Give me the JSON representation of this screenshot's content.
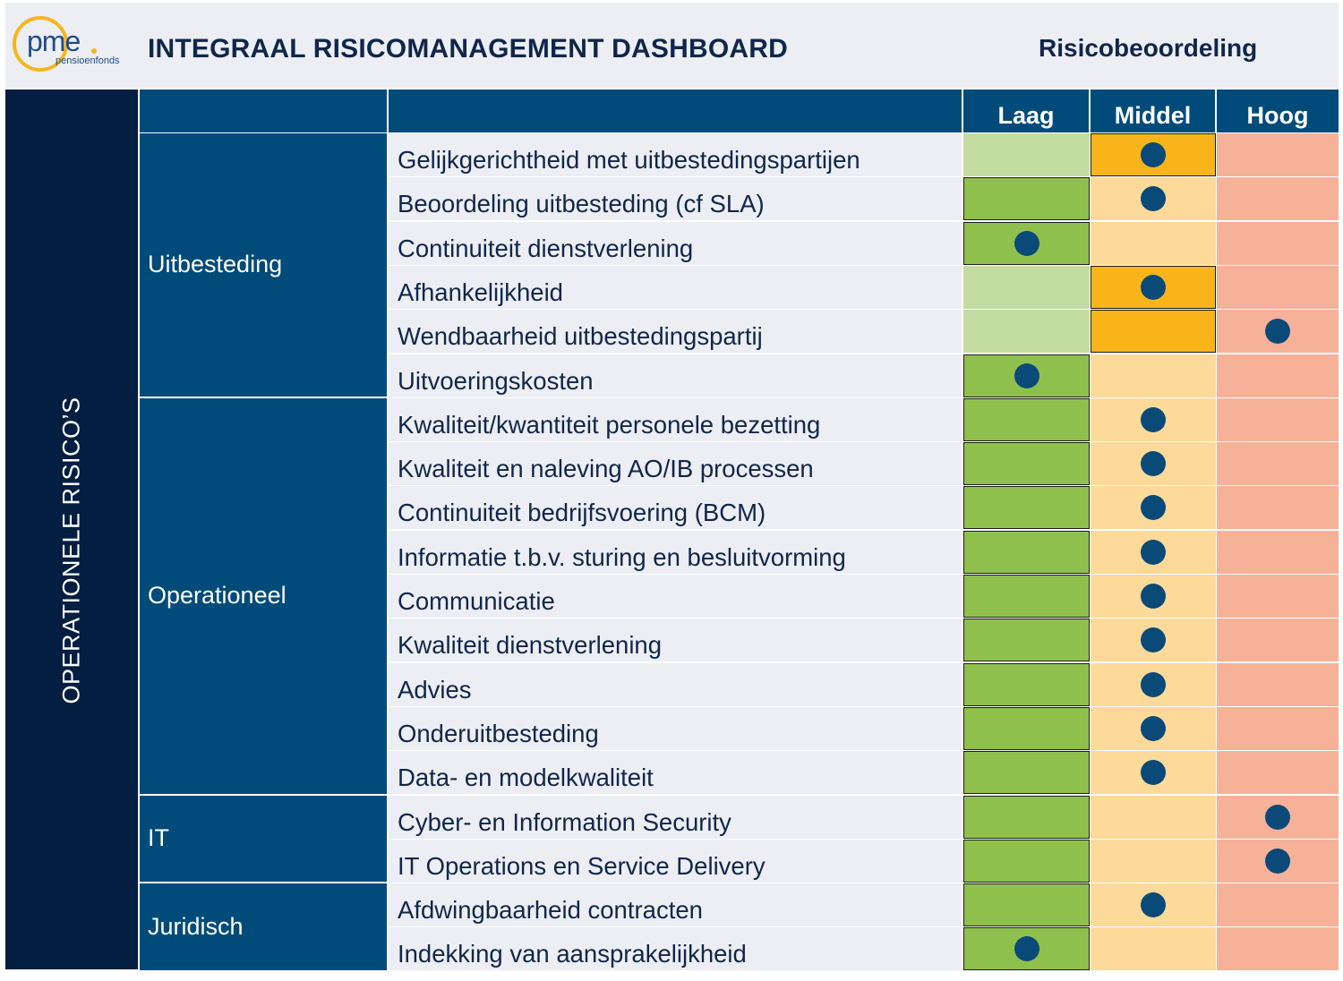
{
  "header": {
    "logo_text": "pme",
    "logo_sub": "pensioenfonds",
    "title": "INTEGRAAL RISICOMANAGEMENT DASHBOARD",
    "assessment_label": "Risicobeoordeling"
  },
  "levels": [
    "Laag",
    "Middel",
    "Hoog"
  ],
  "side_label": "OPERATIONELE RISICO’S",
  "colors": {
    "navy_dark": "#041e42",
    "navy": "#004b7a",
    "row_bg": "#eceef3",
    "laag_light": "#c3dca0",
    "laag_strong": "#8fc04e",
    "middel_light": "#fdd99a",
    "middel_strong": "#f8b418",
    "hoog": "#f6b199",
    "marker": "#0a4a78"
  },
  "categories": [
    {
      "name": "Uitbesteding",
      "rows": [
        0,
        5
      ]
    },
    {
      "name": "Operationeel",
      "rows": [
        6,
        14
      ]
    },
    {
      "name": "IT",
      "rows": [
        15,
        16
      ]
    },
    {
      "name": "Juridisch",
      "rows": [
        17,
        18
      ]
    }
  ],
  "risks": [
    {
      "label": "Gelijkgerichtheid met uitbestedingspartijen",
      "score": "Middel",
      "highlight": "Middel"
    },
    {
      "label": "Beoordeling uitbesteding (cf SLA)",
      "score": "Middel",
      "highlight": "Laag"
    },
    {
      "label": "Continuiteit dienstverlening",
      "score": "Laag",
      "highlight": "Laag"
    },
    {
      "label": "Afhankelijkheid",
      "score": "Middel",
      "highlight": "Middel"
    },
    {
      "label": "Wendbaarheid uitbestedingspartij",
      "score": "Hoog",
      "highlight": "Middel"
    },
    {
      "label": "Uitvoeringskosten",
      "score": "Laag",
      "highlight": "Laag"
    },
    {
      "label": "Kwaliteit/kwantiteit personele bezetting",
      "score": "Middel",
      "highlight": "Laag"
    },
    {
      "label": "Kwaliteit en naleving AO/IB processen",
      "score": "Middel",
      "highlight": "Laag"
    },
    {
      "label": "Continuiteit bedrijfsvoering (BCM)",
      "score": "Middel",
      "highlight": "Laag"
    },
    {
      "label": "Informatie t.b.v. sturing en besluitvorming",
      "score": "Middel",
      "highlight": "Laag"
    },
    {
      "label": "Communicatie",
      "score": "Middel",
      "highlight": "Laag"
    },
    {
      "label": "Kwaliteit dienstverlening",
      "score": "Middel",
      "highlight": "Laag"
    },
    {
      "label": "Advies",
      "score": "Middel",
      "highlight": "Laag"
    },
    {
      "label": "Onderuitbesteding",
      "score": "Middel",
      "highlight": "Laag"
    },
    {
      "label": "Data- en modelkwaliteit",
      "score": "Middel",
      "highlight": "Laag"
    },
    {
      "label": "Cyber- en Information Security",
      "score": "Hoog",
      "highlight": "Laag"
    },
    {
      "label": "IT Operations en Service Delivery",
      "score": "Hoog",
      "highlight": "Laag"
    },
    {
      "label": "Afdwingbaarheid contracten",
      "score": "Middel",
      "highlight": "Laag"
    },
    {
      "label": "Indekking van aansprakelijkheid",
      "score": "Laag",
      "highlight": "Laag"
    }
  ]
}
